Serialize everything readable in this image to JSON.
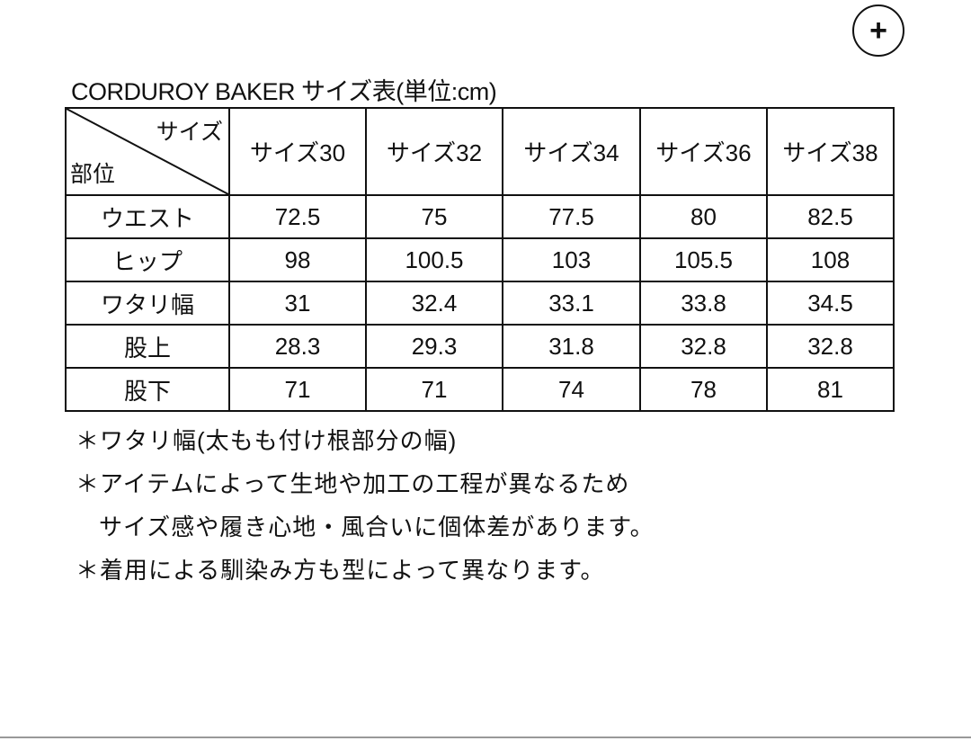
{
  "add_button": {
    "icon": "plus-icon",
    "label": "+"
  },
  "title": "CORDUROY BAKER サイズ表(単位:cm)",
  "table": {
    "corner_top": "サイズ",
    "corner_bottom": "部位",
    "columns": [
      "サイズ30",
      "サイズ32",
      "サイズ34",
      "サイズ36",
      "サイズ38"
    ],
    "rows": [
      {
        "label": "ウエスト",
        "values": [
          "72.5",
          "75",
          "77.5",
          "80",
          "82.5"
        ]
      },
      {
        "label": "ヒップ",
        "values": [
          "98",
          "100.5",
          "103",
          "105.5",
          "108"
        ]
      },
      {
        "label": "ワタリ幅",
        "values": [
          "31",
          "32.4",
          "33.1",
          "33.8",
          "34.5"
        ]
      },
      {
        "label": "股上",
        "values": [
          "28.3",
          "29.3",
          "31.8",
          "32.8",
          "32.8"
        ]
      },
      {
        "label": "股下",
        "values": [
          "71",
          "71",
          "74",
          "78",
          "81"
        ]
      }
    ]
  },
  "notes": [
    "＊ワタリ幅(太もも付け根部分の幅)",
    "＊アイテムによって生地や加工の工程が異なるため",
    "サイズ感や履き心地・風合いに個体差があります。",
    "＊着用による馴染み方も型によって異なります。"
  ]
}
